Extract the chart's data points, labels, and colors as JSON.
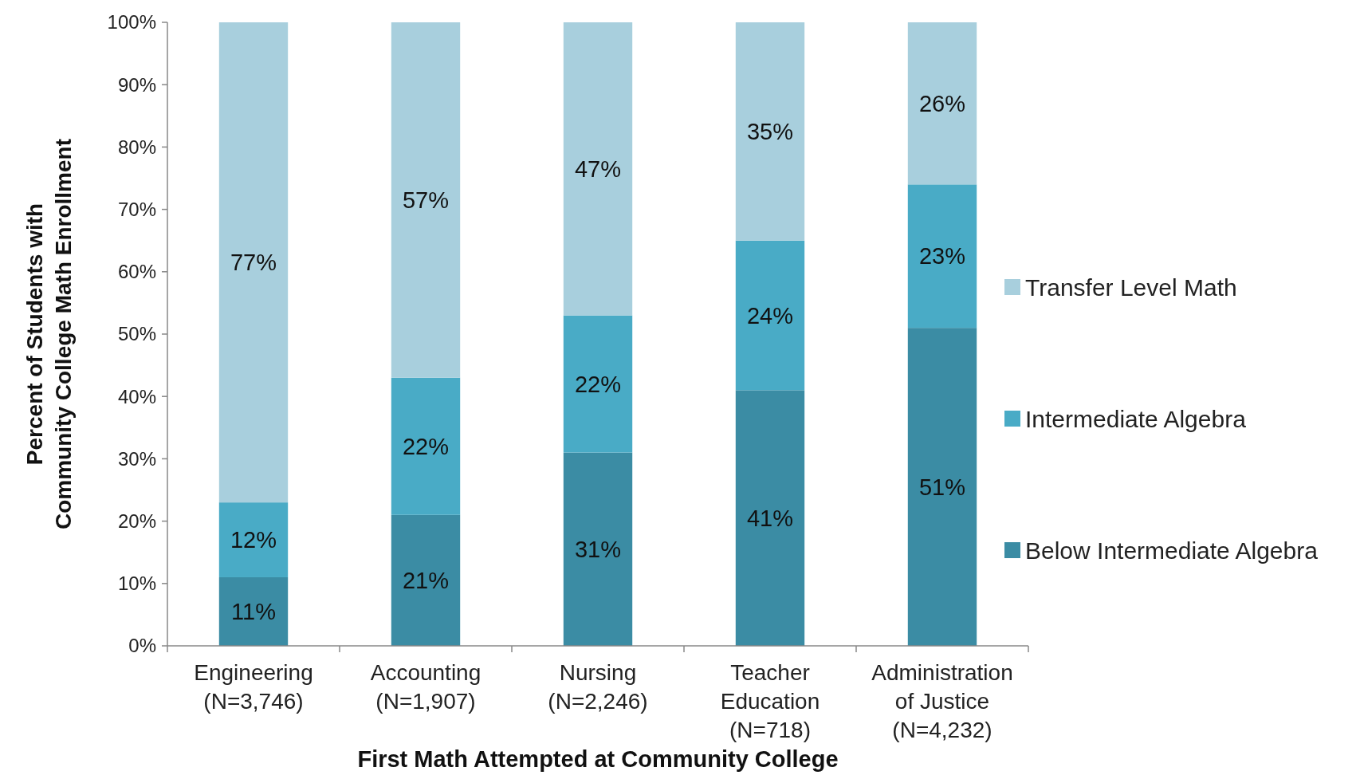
{
  "chart_data": {
    "type": "bar",
    "stacked": true,
    "xlabel": "First Math Attempted at Community College",
    "ylabel": "Percent of Students with\nCommunity College Math Enrollment",
    "categories": [
      "Engineering\n(N=3,746)",
      "Accounting\n(N=1,907)",
      "Nursing\n(N=2,246)",
      "Teacher\nEducation\n(N=718)",
      "Administration\nof Justice\n(N=4,232)"
    ],
    "series": [
      {
        "name": "Below Intermediate Algebra",
        "color": "#3b8ca4",
        "values": [
          11,
          21,
          31,
          41,
          51
        ],
        "value_labels": [
          "11%",
          "21%",
          "31%",
          "41%",
          "51%"
        ]
      },
      {
        "name": "Intermediate Algebra",
        "color": "#49abc6",
        "values": [
          12,
          22,
          22,
          24,
          23
        ],
        "value_labels": [
          "12%",
          "22%",
          "22%",
          "24%",
          "23%"
        ]
      },
      {
        "name": "Transfer Level Math",
        "color": "#a8cfdd",
        "values": [
          77,
          57,
          47,
          35,
          26
        ],
        "value_labels": [
          "77%",
          "57%",
          "47%",
          "35%",
          "26%"
        ]
      }
    ],
    "ylim": [
      0,
      100
    ],
    "yticks": [
      {
        "value": 0,
        "label": "0%"
      },
      {
        "value": 10,
        "label": "10%"
      },
      {
        "value": 20,
        "label": "20%"
      },
      {
        "value": 30,
        "label": "30%"
      },
      {
        "value": 40,
        "label": "40%"
      },
      {
        "value": 50,
        "label": "50%"
      },
      {
        "value": 60,
        "label": "60%"
      },
      {
        "value": 70,
        "label": "70%"
      },
      {
        "value": 80,
        "label": "80%"
      },
      {
        "value": 90,
        "label": "90%"
      },
      {
        "value": 100,
        "label": "100%"
      }
    ],
    "legend": "right",
    "grid": false
  }
}
